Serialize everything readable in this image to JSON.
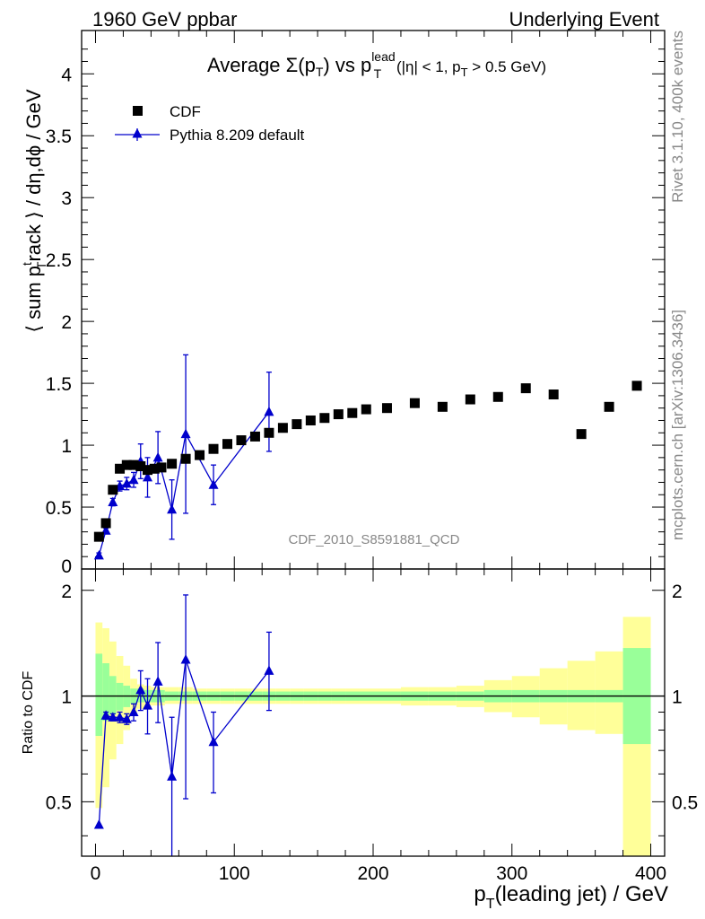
{
  "header": {
    "left": "1960 GeV ppbar",
    "right": "Underlying Event"
  },
  "side_labels": {
    "rivet": "Rivet 3.1.10,  400k events",
    "mcplots": "mcplots.cern.ch [arXiv:1306.3436]"
  },
  "watermark": "CDF_2010_S8591881_QCD",
  "top_panel": {
    "title_parts": {
      "average": "Average ",
      "sigma": "Σ(p",
      "sub_t": "T",
      "close": ") vs p",
      "sup_lead": "lead",
      "sub_t2": "T",
      "rest": " (|η| < 1, p",
      "sub_t3": "T",
      "rest2": " > 0.5 GeV)"
    },
    "ylabel_parts": {
      "a": "⟨ sum p",
      "sup": "t",
      "sub": "T",
      "b": "rack ⟩ / dη,dϕ / GeV"
    },
    "yticks": [
      "0",
      "0.5",
      "1",
      "1.5",
      "2",
      "2.5",
      "3",
      "3.5",
      "4"
    ],
    "legend": {
      "data_label": "CDF",
      "mc_label": "Pythia 8.209 default",
      "position": "top-left"
    }
  },
  "bottom_panel": {
    "ylabel": "Ratio to CDF",
    "yticks_left": [
      "0.5",
      "1",
      "2"
    ],
    "yticks_right": [
      "0.5",
      "1",
      "2"
    ]
  },
  "xaxis": {
    "ticks": [
      "0",
      "100",
      "200",
      "300",
      "400"
    ],
    "label_parts": {
      "p": "p",
      "sub": "T",
      "rest": "(leading jet) / GeV"
    }
  },
  "colors": {
    "data": "#000000",
    "mc": "#0000cc",
    "band_inner": "#99ff99",
    "band_outer": "#ffff99"
  },
  "chart_data": [
    {
      "type": "scatter",
      "panel": "main",
      "xlim": [
        -10,
        410
      ],
      "ylim": [
        0,
        4.35
      ],
      "series": [
        {
          "name": "CDF",
          "x": [
            2.5,
            7.5,
            12.5,
            17.5,
            22.5,
            27.5,
            32.5,
            37.5,
            42.5,
            47.5,
            55,
            65,
            75,
            85,
            95,
            105,
            115,
            125,
            135,
            145,
            155,
            165,
            175,
            185,
            195,
            210,
            230,
            250,
            270,
            290,
            310,
            330,
            350,
            370,
            390
          ],
          "y": [
            0.26,
            0.37,
            0.64,
            0.81,
            0.84,
            0.84,
            0.83,
            0.8,
            0.81,
            0.82,
            0.85,
            0.89,
            0.92,
            0.97,
            1.01,
            1.04,
            1.07,
            1.1,
            1.14,
            1.17,
            1.2,
            1.22,
            1.25,
            1.26,
            1.29,
            1.3,
            1.34,
            1.31,
            1.37,
            1.39,
            1.46,
            1.41,
            1.09,
            1.31,
            1.48
          ]
        },
        {
          "name": "Pythia 8.209 default",
          "x": [
            2.5,
            7.5,
            12.5,
            17.5,
            22.5,
            27.5,
            32.5,
            37.5,
            45,
            55,
            65,
            85,
            125
          ],
          "y": [
            0.11,
            0.31,
            0.54,
            0.67,
            0.69,
            0.72,
            0.87,
            0.74,
            0.9,
            0.48,
            1.09,
            0.68,
            1.27
          ],
          "yerr": [
            0.02,
            0.02,
            0.03,
            0.04,
            0.05,
            0.06,
            0.14,
            0.16,
            0.21,
            0.24,
            0.64,
            0.16,
            0.32
          ]
        }
      ]
    },
    {
      "type": "line",
      "panel": "ratio",
      "ylabel": "Ratio to CDF",
      "xlim": [
        -10,
        410
      ],
      "ylim": [
        0.35,
        2.3
      ],
      "log_y": true,
      "series": [
        {
          "name": "Pythia 8.209 default",
          "x": [
            2.5,
            7.5,
            12.5,
            17.5,
            22.5,
            27.5,
            32.5,
            37.5,
            45,
            55,
            65,
            85,
            125
          ],
          "y": [
            0.43,
            0.88,
            0.87,
            0.87,
            0.86,
            0.9,
            1.04,
            0.94,
            1.1,
            0.59,
            1.27,
            0.74,
            1.18
          ],
          "ylow": [
            0.43,
            0.86,
            0.85,
            0.84,
            0.83,
            0.85,
            0.91,
            0.78,
            0.84,
            0.31,
            0.51,
            0.53,
            0.91
          ],
          "yhigh": [
            0.43,
            0.9,
            0.89,
            0.9,
            0.89,
            0.95,
            1.18,
            1.12,
            1.42,
            0.87,
            1.94,
            0.9,
            1.52
          ]
        }
      ],
      "bands": {
        "edges": [
          0,
          5,
          10,
          15,
          20,
          25,
          30,
          35,
          40,
          50,
          60,
          70,
          80,
          90,
          100,
          110,
          120,
          130,
          140,
          150,
          160,
          170,
          180,
          190,
          200,
          220,
          240,
          260,
          280,
          300,
          320,
          340,
          360,
          380,
          400
        ],
        "inner_low": [
          0.77,
          0.85,
          0.89,
          0.91,
          0.93,
          0.95,
          0.96,
          0.96,
          0.96,
          0.97,
          0.97,
          0.97,
          0.97,
          0.97,
          0.97,
          0.97,
          0.97,
          0.97,
          0.97,
          0.97,
          0.97,
          0.97,
          0.97,
          0.97,
          0.97,
          0.97,
          0.97,
          0.97,
          0.96,
          0.96,
          0.96,
          0.96,
          0.96,
          0.73
        ],
        "inner_high": [
          1.32,
          1.24,
          1.14,
          1.09,
          1.07,
          1.05,
          1.05,
          1.04,
          1.04,
          1.03,
          1.03,
          1.03,
          1.03,
          1.03,
          1.03,
          1.03,
          1.03,
          1.03,
          1.03,
          1.03,
          1.03,
          1.03,
          1.03,
          1.03,
          1.03,
          1.03,
          1.03,
          1.03,
          1.04,
          1.04,
          1.04,
          1.04,
          1.04,
          1.37
        ],
        "outer_low": [
          0.48,
          0.55,
          0.66,
          0.73,
          0.8,
          0.88,
          0.92,
          0.93,
          0.94,
          0.95,
          0.95,
          0.95,
          0.95,
          0.95,
          0.95,
          0.95,
          0.95,
          0.95,
          0.95,
          0.95,
          0.95,
          0.95,
          0.95,
          0.95,
          0.95,
          0.94,
          0.94,
          0.93,
          0.9,
          0.87,
          0.83,
          0.8,
          0.78,
          0.35
        ],
        "outer_high": [
          1.62,
          1.56,
          1.43,
          1.3,
          1.22,
          1.12,
          1.08,
          1.07,
          1.06,
          1.06,
          1.06,
          1.05,
          1.05,
          1.05,
          1.05,
          1.05,
          1.05,
          1.05,
          1.05,
          1.05,
          1.05,
          1.05,
          1.05,
          1.05,
          1.05,
          1.06,
          1.06,
          1.07,
          1.11,
          1.14,
          1.2,
          1.26,
          1.34,
          1.68
        ]
      }
    }
  ]
}
